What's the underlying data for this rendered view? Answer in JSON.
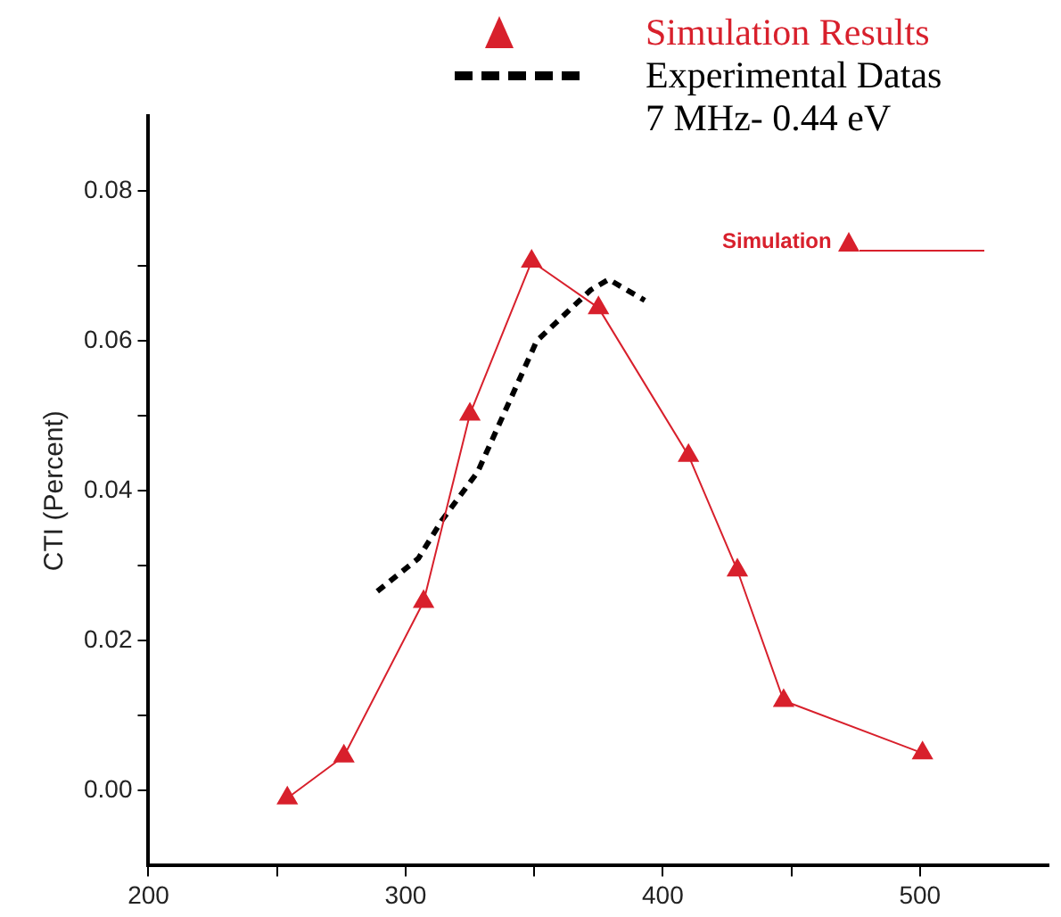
{
  "chart_data": {
    "type": "line",
    "subtitle": "7 MHz- 0.44 eV",
    "ylabel": "CTI (Percent)",
    "xlim": [
      200,
      550
    ],
    "ylim": [
      -0.01,
      0.09
    ],
    "xticks": [
      200,
      {
        "value": 250,
        "label": null
      },
      300,
      {
        "value": 350,
        "label": null
      },
      400,
      {
        "value": 450,
        "label": null
      },
      500
    ],
    "yticks": [
      {
        "value": 0,
        "label": "0.00"
      },
      {
        "value": 0.01,
        "label": null
      },
      {
        "value": 0.02,
        "label": "0.02"
      },
      {
        "value": 0.03,
        "label": null
      },
      {
        "value": 0.04,
        "label": "0.04"
      },
      {
        "value": 0.05,
        "label": null
      },
      {
        "value": 0.06,
        "label": "0.06"
      },
      {
        "value": 0.07,
        "label": null
      },
      {
        "value": 0.08,
        "label": "0.08"
      }
    ],
    "grid": false,
    "legend": "top right",
    "annotations": [
      "Simulation"
    ],
    "series": [
      {
        "name": "Simulation Results",
        "color": "#d8202c",
        "marker": "triangle",
        "line_style": "solid",
        "x": [
          254,
          276,
          307,
          325,
          349,
          375,
          410,
          429,
          447,
          501
        ],
        "values": [
          -0.001,
          0.0046,
          0.0252,
          0.0502,
          0.0706,
          0.0644,
          0.0447,
          0.0294,
          0.012,
          0.005
        ]
      },
      {
        "name": "Experimental Datas",
        "color": "#000000",
        "marker": "none",
        "line_style": "dashed",
        "x": [
          289,
          305,
          314,
          328,
          351,
          372,
          379,
          393
        ],
        "values": [
          0.0266,
          0.031,
          0.036,
          0.0425,
          0.06,
          0.0668,
          0.0682,
          0.0654
        ]
      }
    ]
  }
}
